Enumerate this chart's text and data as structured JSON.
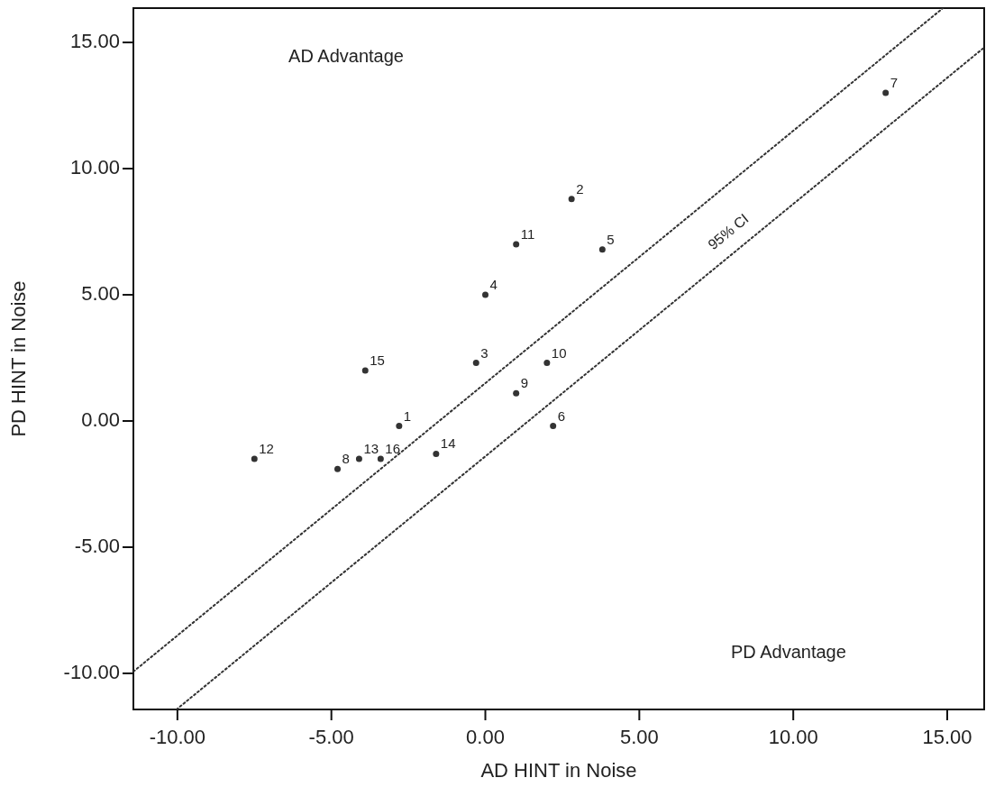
{
  "chart_data": {
    "type": "scatter",
    "xlabel": "AD HINT in Noise",
    "ylabel": "PD HINT in Noise",
    "xlim": [
      -11.43,
      16.2
    ],
    "ylim": [
      -11.43,
      16.36
    ],
    "xticks": [
      {
        "value": -10,
        "label": "-10.00"
      },
      {
        "value": -5,
        "label": "-5.00"
      },
      {
        "value": 0,
        "label": "0.00"
      },
      {
        "value": 5,
        "label": "5.00"
      },
      {
        "value": 10,
        "label": "10.00"
      },
      {
        "value": 15,
        "label": "15.00"
      }
    ],
    "yticks": [
      {
        "value": -10,
        "label": "-10.00"
      },
      {
        "value": -5,
        "label": "-5.00"
      },
      {
        "value": 0,
        "label": "0.00"
      },
      {
        "value": 5,
        "label": "5.00"
      },
      {
        "value": 10,
        "label": "10.00"
      },
      {
        "value": 15,
        "label": "15.00"
      }
    ],
    "grid": false,
    "series": [
      {
        "color": "#333333",
        "marker": "circle",
        "x": [
          -2.8,
          2.8,
          -0.3,
          0.0,
          3.8,
          2.2,
          13.0,
          -4.8,
          1.0,
          2.0,
          1.0,
          -7.5,
          -4.1,
          -1.6,
          -3.9,
          -3.4
        ],
        "values": [
          -0.2,
          8.8,
          2.3,
          5.0,
          6.8,
          -0.2,
          13.0,
          -1.9,
          1.1,
          2.3,
          7.0,
          -1.5,
          -1.5,
          -1.3,
          2.0,
          -1.5
        ]
      },
      {
        "type": "line",
        "color": "#333333",
        "line_style": "dotted",
        "x": [
          -11.43,
          14.86
        ],
        "values": [
          -9.93,
          16.36
        ]
      },
      {
        "type": "line",
        "color": "#333333",
        "line_style": "dotted",
        "x": [
          -10.03,
          16.2
        ],
        "values": [
          -11.43,
          14.8
        ]
      }
    ],
    "annotations": [
      {
        "text": "1",
        "x": -2.8,
        "y": -0.2
      },
      {
        "text": "2",
        "x": 2.8,
        "y": 8.8
      },
      {
        "text": "3",
        "x": -0.3,
        "y": 2.3
      },
      {
        "text": "4",
        "x": 0.0,
        "y": 5.0
      },
      {
        "text": "5",
        "x": 3.8,
        "y": 6.8
      },
      {
        "text": "6",
        "x": 2.2,
        "y": -0.2
      },
      {
        "text": "7",
        "x": 13.0,
        "y": 13.0
      },
      {
        "text": "8",
        "x": -4.8,
        "y": -1.9
      },
      {
        "text": "9",
        "x": 1.0,
        "y": 1.1
      },
      {
        "text": "10",
        "x": 2.0,
        "y": 2.3
      },
      {
        "text": "11",
        "x": 1.0,
        "y": 7.0
      },
      {
        "text": "12",
        "x": -7.5,
        "y": -1.5
      },
      {
        "text": "13",
        "x": -4.1,
        "y": -1.5
      },
      {
        "text": "14",
        "x": -1.6,
        "y": -1.3
      },
      {
        "text": "15",
        "x": -3.9,
        "y": 2.0
      },
      {
        "text": "16",
        "x": -3.4,
        "y": -1.5
      },
      "95% CI",
      "AD Advantage",
      "PD Advantage"
    ]
  }
}
